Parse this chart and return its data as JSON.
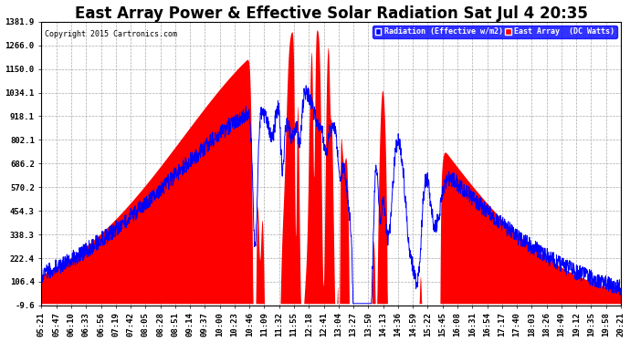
{
  "title": "East Array Power & Effective Solar Radiation Sat Jul 4 20:35",
  "copyright": "Copyright 2015 Cartronics.com",
  "legend_labels": [
    "Radiation (Effective w/m2)",
    "East Array  (DC Watts)"
  ],
  "legend_colors": [
    "blue",
    "red"
  ],
  "bg_color": "#ffffff",
  "plot_bg_color": "#ffffff",
  "ymin": -9.6,
  "ymax": 1381.9,
  "yticks": [
    1381.9,
    1266.0,
    1150.0,
    1034.1,
    918.1,
    802.1,
    686.2,
    570.2,
    454.3,
    338.3,
    222.4,
    106.4,
    -9.6
  ],
  "x_labels": [
    "05:21",
    "05:47",
    "06:10",
    "06:33",
    "06:56",
    "07:19",
    "07:42",
    "08:05",
    "08:28",
    "08:51",
    "09:14",
    "09:37",
    "10:00",
    "10:23",
    "10:46",
    "11:09",
    "11:32",
    "11:55",
    "12:18",
    "12:41",
    "13:04",
    "13:27",
    "13:50",
    "14:13",
    "14:36",
    "14:59",
    "15:22",
    "15:45",
    "16:08",
    "16:31",
    "16:54",
    "17:17",
    "17:40",
    "18:03",
    "18:26",
    "18:49",
    "19:12",
    "19:35",
    "19:58",
    "20:21"
  ],
  "title_fontsize": 12,
  "axis_fontsize": 6.5,
  "grid_color": "#aaaaaa",
  "line_color": "#0000ff",
  "fill_color": "#ff0000",
  "fill_alpha": 1.0
}
